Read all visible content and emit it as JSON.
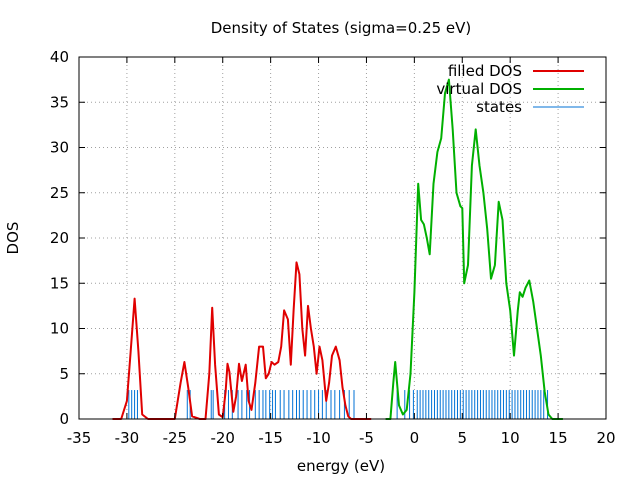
{
  "chart_data": {
    "type": "line",
    "title": "Density of States (sigma=0.25 eV)",
    "xlabel": "energy (eV)",
    "ylabel": "DOS",
    "xlim": [
      -35,
      20
    ],
    "ylim": [
      0,
      40
    ],
    "xticks": [
      -35,
      -30,
      -25,
      -20,
      -15,
      -10,
      -5,
      0,
      5,
      10,
      15,
      20
    ],
    "yticks": [
      0,
      5,
      10,
      15,
      20,
      25,
      30,
      35,
      40
    ],
    "grid": true,
    "legend_position": "top-right",
    "colors": {
      "filled": "#e00000",
      "virtual": "#00b000",
      "states": "#0072d6"
    },
    "series": [
      {
        "name": "filled DOS",
        "x": [
          -31.5,
          -30.6,
          -30.0,
          -29.6,
          -29.2,
          -28.8,
          -28.4,
          -27.8,
          -27.0,
          -25.8,
          -25.0,
          -24.4,
          -24.0,
          -23.6,
          -23.2,
          -22.4,
          -21.8,
          -21.4,
          -21.1,
          -20.8,
          -20.4,
          -20.0,
          -19.7,
          -19.5,
          -19.3,
          -18.9,
          -18.6,
          -18.3,
          -18.0,
          -17.6,
          -17.3,
          -17.0,
          -16.6,
          -16.2,
          -15.8,
          -15.5,
          -15.2,
          -14.9,
          -14.6,
          -14.2,
          -13.9,
          -13.6,
          -13.2,
          -12.9,
          -12.6,
          -12.3,
          -12.0,
          -11.7,
          -11.4,
          -11.1,
          -10.8,
          -10.5,
          -10.2,
          -9.9,
          -9.6,
          -9.2,
          -8.9,
          -8.6,
          -8.2,
          -7.8,
          -7.5,
          -7.2,
          -6.9,
          -6.6,
          -6.3,
          -6.0,
          -5.8,
          -5.6,
          -5.2,
          -4.8,
          -4.5
        ],
        "y": [
          0,
          0,
          2,
          7.5,
          13.3,
          7.5,
          0.5,
          0,
          0,
          0,
          0,
          4,
          6.3,
          3.5,
          0.3,
          0,
          0,
          5,
          12.3,
          6,
          0.5,
          0.2,
          3,
          6.1,
          5.2,
          0.8,
          2.5,
          6.1,
          4.2,
          6,
          2,
          1,
          4,
          8,
          8,
          4.5,
          5,
          6.3,
          6,
          6.3,
          8,
          12,
          11,
          6,
          12,
          17.3,
          16,
          10,
          7,
          12.5,
          10,
          8,
          5,
          8,
          6.5,
          2,
          4,
          7,
          8,
          6.5,
          3.5,
          1.5,
          0.3,
          0,
          0,
          0,
          0,
          0,
          0,
          0,
          0
        ]
      },
      {
        "name": "virtual DOS",
        "x": [
          -3.0,
          -2.5,
          -2.2,
          -2.0,
          -1.6,
          -1.2,
          -0.8,
          -0.4,
          0.0,
          0.4,
          0.7,
          1.0,
          1.3,
          1.6,
          2.0,
          2.4,
          2.8,
          3.2,
          3.6,
          4.0,
          4.4,
          4.8,
          5.0,
          5.2,
          5.6,
          6.0,
          6.4,
          6.8,
          7.2,
          7.6,
          8.0,
          8.4,
          8.8,
          9.2,
          9.6,
          10.0,
          10.4,
          10.8,
          11.0,
          11.3,
          11.6,
          12.0,
          12.4,
          12.8,
          13.2,
          13.6,
          14.0,
          14.4,
          14.8,
          15.2,
          15.5
        ],
        "y": [
          0,
          0,
          4,
          6.3,
          1.5,
          0.5,
          1,
          5,
          14,
          26,
          22,
          21.5,
          20,
          18.2,
          26,
          29.5,
          31,
          36,
          37.5,
          32,
          25,
          23.5,
          23.3,
          15,
          17,
          28,
          32,
          28,
          25,
          21,
          15.5,
          17,
          24,
          22,
          15,
          12,
          7,
          12,
          14,
          13.5,
          14.5,
          15.3,
          13,
          10,
          7,
          3,
          0.5,
          0,
          0,
          0,
          0
        ]
      }
    ],
    "states": {
      "name": "states",
      "height": 3.2,
      "x": [
        -29.8,
        -29.5,
        -29.2,
        -28.9,
        -23.7,
        -23.4,
        -21.2,
        -21.0,
        -19.8,
        -19.4,
        -19.0,
        -18.4,
        -18.0,
        -17.5,
        -17.2,
        -16.6,
        -16.2,
        -15.8,
        -15.5,
        -15.1,
        -14.8,
        -14.5,
        -14.0,
        -13.6,
        -13.1,
        -12.7,
        -12.3,
        -12.0,
        -11.6,
        -11.2,
        -10.8,
        -10.4,
        -10.0,
        -9.6,
        -9.2,
        -8.7,
        -8.3,
        -7.8,
        -7.3,
        -6.8,
        -6.3,
        -1.8,
        -1.0,
        -0.5,
        -0.1,
        0.3,
        0.6,
        0.9,
        1.2,
        1.5,
        1.8,
        2.1,
        2.4,
        2.7,
        3.0,
        3.3,
        3.6,
        3.9,
        4.2,
        4.5,
        4.8,
        5.1,
        5.4,
        5.7,
        6.0,
        6.3,
        6.6,
        6.9,
        7.2,
        7.5,
        7.8,
        8.1,
        8.4,
        8.7,
        9.0,
        9.3,
        9.6,
        9.9,
        10.2,
        10.5,
        10.8,
        11.1,
        11.4,
        11.7,
        12.0,
        12.3,
        12.6,
        12.9,
        13.2,
        13.5,
        13.9
      ]
    }
  }
}
